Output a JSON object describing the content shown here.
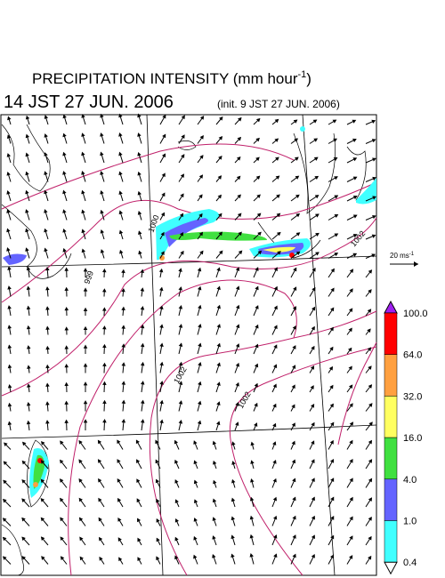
{
  "header": {
    "title": "PRECIPITATION INTENSITY (mm hour",
    "title_sup": "-1",
    "title_end": ")",
    "time": "14 JST 27 JUN. 2006",
    "init": "(init. 9 JST 27 JUN. 2006)"
  },
  "reference_vector": {
    "label": "20 ms",
    "sup": "-1"
  },
  "isobar_labels": [
    "1000",
    "999",
    "1002",
    "1002",
    "1002"
  ],
  "colorbar": {
    "labels": [
      "100.0",
      "64.0",
      "32.0",
      "16.0",
      "4.0",
      "1.0",
      "0.4"
    ],
    "over_color": "#a020f0",
    "colors": [
      "#ff0000",
      "#ffa040",
      "#ffff60",
      "#40e040",
      "#6464ff",
      "#40ffff"
    ],
    "under_color": "#ffffff"
  }
}
